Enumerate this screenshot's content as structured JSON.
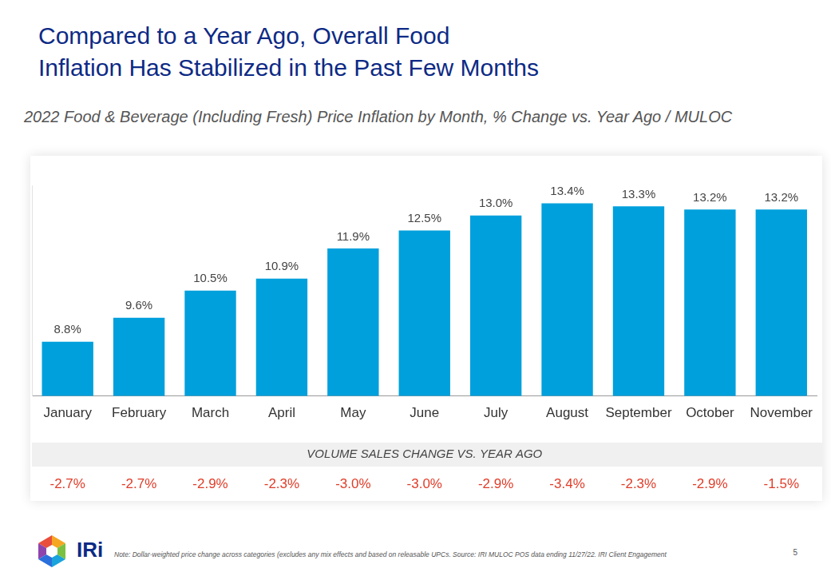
{
  "chart_data": {
    "type": "bar",
    "title": [
      "Compared to a Year Ago, Overall Food",
      "Inflation Has Stabilized in the Past Few Months"
    ],
    "subtitle": "2022 Food & Beverage (Including Fresh) Price Inflation by Month, % Change vs. Year Ago / MULOC",
    "categories": [
      "January",
      "February",
      "March",
      "April",
      "May",
      "June",
      "July",
      "August",
      "September",
      "October",
      "November"
    ],
    "values": [
      8.8,
      9.6,
      10.5,
      10.9,
      11.9,
      12.5,
      13.0,
      13.4,
      13.3,
      13.2,
      13.2
    ],
    "value_labels": [
      "8.8%",
      "9.6%",
      "10.5%",
      "10.9%",
      "11.9%",
      "12.5%",
      "13.0%",
      "13.4%",
      "13.3%",
      "13.2%",
      "13.2%"
    ],
    "color": "#00a0dc",
    "ylim": [
      7,
      14
    ],
    "grid": false,
    "data_labels": true,
    "tick_labels": "x",
    "volume_sales_change": {
      "title": "VOLUME SALES CHANGE VS. YEAR AGO",
      "values": [
        -2.7,
        -2.7,
        -2.9,
        -2.3,
        -3.0,
        -3.0,
        -2.9,
        -3.4,
        -2.3,
        -2.9,
        -1.5
      ],
      "value_labels": [
        "-2.7%",
        "-2.7%",
        "-2.9%",
        "-2.3%",
        "-3.0%",
        "-3.0%",
        "-2.9%",
        "-3.4%",
        "-2.3%",
        "-2.9%",
        "-1.5%"
      ],
      "color": "#e03c28"
    }
  },
  "footer": {
    "logo": "IRi",
    "note": "Note: Dollar-weighted price change across categories (excludes any mix effects and based on releasable UPCs. Source: IRI MULOC POS data ending 11/27/22. IRI Client Engagement",
    "page": "5"
  }
}
